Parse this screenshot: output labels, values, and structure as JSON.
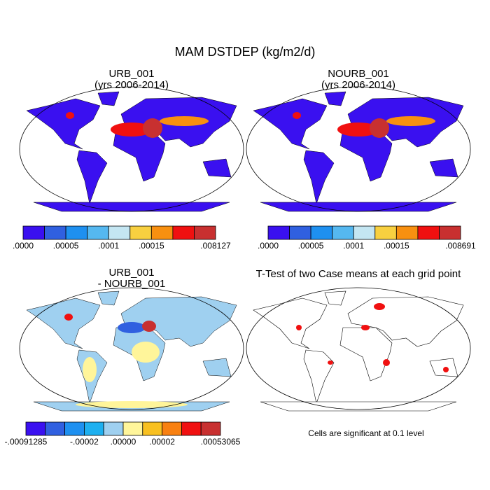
{
  "title": "MAM DSTDEP (kg/m2/d)",
  "panels": [
    {
      "title_lines": [
        "URB_001",
        "(yrs 2006-2014)"
      ],
      "colorbar": {
        "colors": [
          "#3a10f0",
          "#3060e0",
          "#1e90f0",
          "#55b8f0",
          "#c4e6f2",
          "#f8d040",
          "#f89010",
          "#f01010",
          "#c83030"
        ],
        "labels": [
          ".0000",
          ".00005",
          ".0001",
          ".00015",
          ".008127"
        ]
      }
    },
    {
      "title_lines": [
        "NOURB_001",
        "(yrs 2006-2014)"
      ],
      "colorbar": {
        "colors": [
          "#3a10f0",
          "#3060e0",
          "#1e90f0",
          "#55b8f0",
          "#c4e6f2",
          "#f8d040",
          "#f89010",
          "#f01010",
          "#c83030"
        ],
        "labels": [
          ".0000",
          ".00005",
          ".0001",
          ".00015",
          ".008691"
        ]
      }
    },
    {
      "title_lines": [
        "URB_001",
        "- NOURB_001"
      ],
      "colorbar": {
        "colors": [
          "#3a10f0",
          "#3060e0",
          "#1e90f0",
          "#1eb0f0",
          "#9fd0f0",
          "#fff59a",
          "#f8c020",
          "#f88010",
          "#f01010",
          "#c83030"
        ],
        "labels": [
          "-.00091285",
          "-.00002",
          ".00000",
          ".00002",
          ".00053065"
        ]
      }
    },
    {
      "title_lines": [
        "T-Test of two Case means at each grid point"
      ],
      "note": "Cells are significant at 0.1 level"
    }
  ]
}
